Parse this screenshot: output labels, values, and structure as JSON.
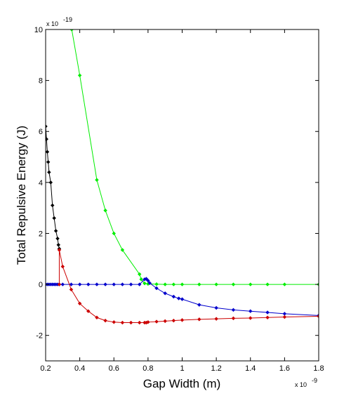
{
  "chart_data": {
    "type": "line",
    "xlabel": "Gap Width (m)",
    "ylabel": "Total Repulsive Energy (J)",
    "x_exponent_label": "x 10",
    "x_exponent": "-9",
    "y_exponent_label": "x 10",
    "y_exponent": "-19",
    "xlim": [
      0.2,
      1.8
    ],
    "ylim": [
      -3,
      10
    ],
    "xticks": [
      0.2,
      0.4,
      0.6,
      0.8,
      1.0,
      1.2,
      1.4,
      1.6,
      1.8
    ],
    "xtick_labels": [
      "0.2",
      "0.4",
      "0.6",
      "0.8",
      "1",
      "1.2",
      "1.4",
      "1.6",
      "1.8"
    ],
    "yticks": [
      -2,
      0,
      2,
      4,
      6,
      8,
      10
    ],
    "ytick_labels": [
      "-2",
      "0",
      "2",
      "4",
      "6",
      "8",
      "10"
    ],
    "grid": false,
    "legend": "none",
    "series": [
      {
        "color": "#00ee00",
        "x": [
          0.353,
          0.4,
          0.5,
          0.55,
          0.6,
          0.65,
          0.75,
          0.76,
          0.78,
          0.8,
          0.85,
          0.9,
          0.95,
          1.0,
          1.1,
          1.2,
          1.3,
          1.4,
          1.5,
          1.6,
          1.8
        ],
        "y": [
          10.0,
          8.2,
          4.1,
          2.9,
          2.0,
          1.35,
          0.4,
          0.2,
          0.04,
          0.02,
          0.01,
          0.0,
          0.0,
          0.0,
          0.0,
          0.0,
          0.0,
          0.0,
          0.0,
          0.0,
          0.0
        ]
      },
      {
        "color": "#0000cc",
        "x": [
          0.2,
          0.21,
          0.22,
          0.23,
          0.24,
          0.25,
          0.26,
          0.27,
          0.28,
          0.3,
          0.35,
          0.4,
          0.45,
          0.5,
          0.55,
          0.6,
          0.65,
          0.7,
          0.75,
          0.78,
          0.79,
          0.8,
          0.81,
          0.85,
          0.9,
          0.95,
          0.98,
          1.0,
          1.1,
          1.2,
          1.3,
          1.4,
          1.5,
          1.6,
          1.8
        ],
        "y": [
          0.0,
          0.0,
          0.0,
          0.0,
          0.0,
          0.0,
          0.0,
          0.0,
          0.0,
          0.0,
          0.0,
          0.0,
          0.0,
          0.0,
          0.0,
          0.0,
          0.0,
          0.0,
          0.0,
          0.2,
          0.22,
          0.15,
          0.05,
          -0.15,
          -0.35,
          -0.48,
          -0.55,
          -0.58,
          -0.8,
          -0.92,
          -1.0,
          -1.05,
          -1.1,
          -1.15,
          -1.22
        ]
      },
      {
        "color": "#000000",
        "x": [
          0.2,
          0.205,
          0.21,
          0.215,
          0.22,
          0.23,
          0.24,
          0.25,
          0.26,
          0.27,
          0.275,
          0.28
        ],
        "y": [
          6.2,
          5.7,
          5.2,
          4.8,
          4.4,
          4.0,
          3.1,
          2.6,
          2.1,
          1.8,
          1.55,
          1.4
        ]
      },
      {
        "color": "#cc0000",
        "x": [
          0.28,
          0.28,
          0.3,
          0.35,
          0.4,
          0.45,
          0.5,
          0.55,
          0.6,
          0.65,
          0.7,
          0.75,
          0.78,
          0.79,
          0.8,
          0.85,
          0.9,
          0.95,
          1.0,
          1.1,
          1.2,
          1.3,
          1.4,
          1.5,
          1.6,
          1.8
        ],
        "y": [
          0.0,
          1.35,
          0.7,
          -0.2,
          -0.75,
          -1.05,
          -1.3,
          -1.42,
          -1.48,
          -1.5,
          -1.5,
          -1.5,
          -1.5,
          -1.5,
          -1.48,
          -1.46,
          -1.44,
          -1.42,
          -1.4,
          -1.37,
          -1.35,
          -1.33,
          -1.32,
          -1.3,
          -1.28,
          -1.25
        ]
      }
    ]
  }
}
